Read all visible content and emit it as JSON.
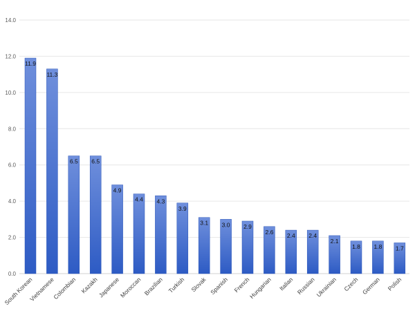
{
  "chart_data": {
    "type": "bar",
    "title": "",
    "xlabel": "",
    "ylabel": "",
    "ylim": [
      0,
      14
    ],
    "ytick_step": 2,
    "ytick_labels": [
      "0.0",
      "2.0",
      "4.0",
      "6.0",
      "8.0",
      "10.0",
      "12.0",
      "14.0"
    ],
    "grid": true,
    "legend": "none",
    "categories": [
      "South Korean",
      "Vietnamese",
      "Colombian",
      "Kazakh",
      "Japanese",
      "Moroccan",
      "Brazilian",
      "Turkish",
      "Slovak",
      "Spanish",
      "French",
      "Hungarian",
      "Italian",
      "Russian",
      "Ukrainian",
      "Czech",
      "German",
      "Polish"
    ],
    "values": [
      11.9,
      11.3,
      6.5,
      6.5,
      4.9,
      4.4,
      4.3,
      3.9,
      3.1,
      3.0,
      2.9,
      2.6,
      2.4,
      2.4,
      2.1,
      1.8,
      1.8,
      1.7
    ],
    "data_labels": [
      "11.9",
      "11.3",
      "6.5",
      "6.5",
      "4.9",
      "4.4",
      "4.3",
      "3.9",
      "3.1",
      "3.0",
      "2.9",
      "2.6",
      "2.4",
      "2.4",
      "2.1",
      "1.8",
      "1.8",
      "1.7"
    ],
    "colors": {
      "bar_top": "#6f8fdc",
      "bar_bottom": "#2d5bc4",
      "bar_edge": "#2a55b8"
    }
  }
}
